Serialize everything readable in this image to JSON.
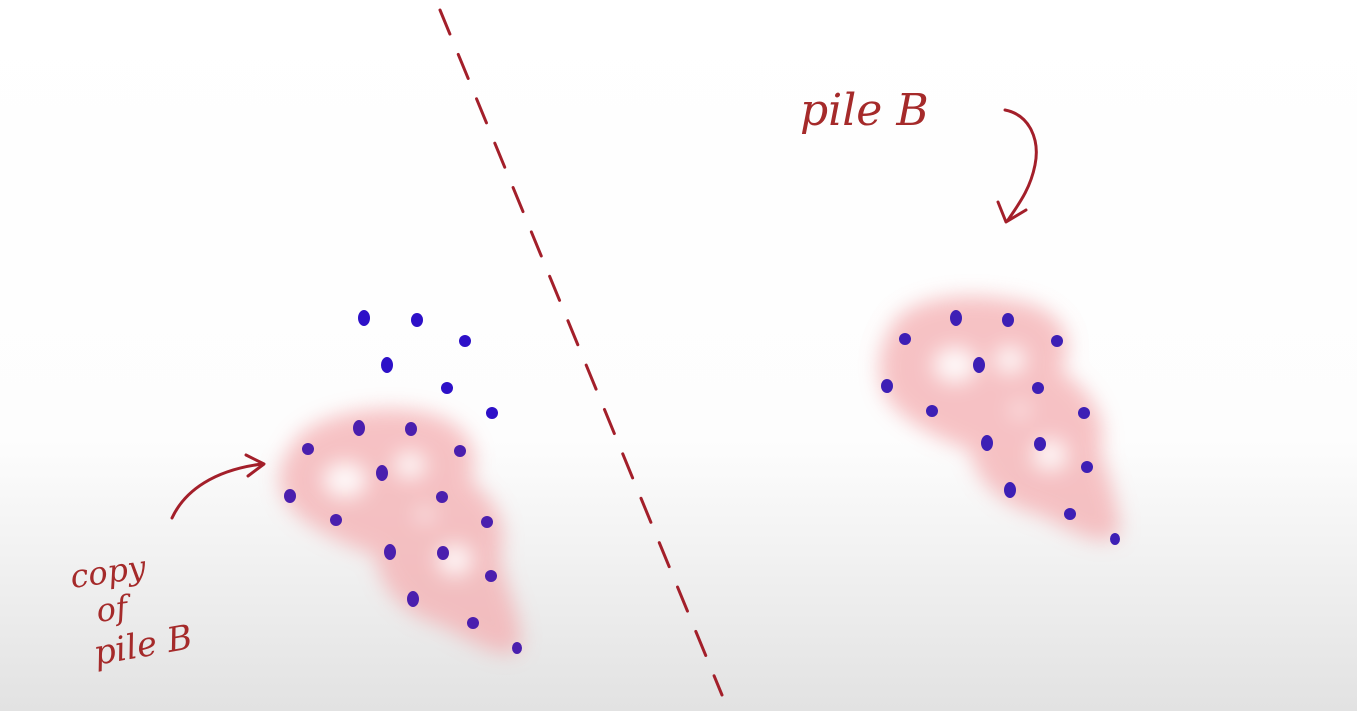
{
  "labels": {
    "pile_b": "pile B",
    "copy_line1": "copy",
    "copy_line2": "of",
    "copy_line3": "pile B"
  },
  "colors": {
    "ink": "#a31f2a",
    "dot": "#3a1ab8",
    "blob": "#f4b6b8",
    "background_top": "#ffffff",
    "background_bottom": "#e3e3e3"
  },
  "icons": {
    "arrows": [
      "curved-arrow-down-icon",
      "curved-arrow-right-icon"
    ],
    "separator": "dashed-line"
  }
}
